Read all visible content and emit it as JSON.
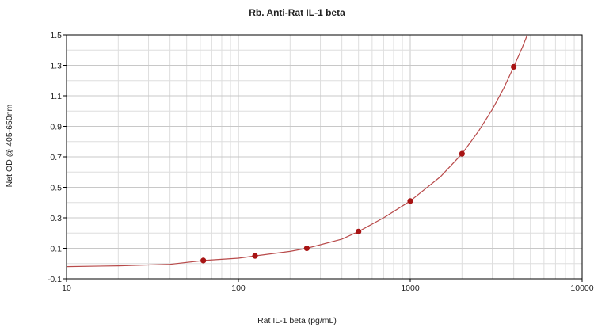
{
  "chart_data": {
    "type": "scatter",
    "title": "Rb. Anti-Rat IL-1 beta",
    "xlabel": "Rat IL-1 beta (pg/mL)",
    "ylabel": "Net OD @ 405-650nm",
    "xscale": "log",
    "xlim": [
      10,
      10000
    ],
    "ylim": [
      -0.1,
      1.5
    ],
    "x_ticks": [
      {
        "value": 10,
        "label": "10"
      },
      {
        "value": 100,
        "label": "100"
      },
      {
        "value": 1000,
        "label": "1000"
      },
      {
        "value": 10000,
        "label": "10000"
      }
    ],
    "y_ticks": [
      {
        "value": -0.1,
        "label": "-0.1"
      },
      {
        "value": 0.1,
        "label": "0.1"
      },
      {
        "value": 0.3,
        "label": "0.3"
      },
      {
        "value": 0.5,
        "label": "0.5"
      },
      {
        "value": 0.7,
        "label": "0.7"
      },
      {
        "value": 0.9,
        "label": "0.9"
      },
      {
        "value": 1.1,
        "label": "1.1"
      },
      {
        "value": 1.3,
        "label": "1.3"
      },
      {
        "value": 1.5,
        "label": "1.5"
      }
    ],
    "grid": true,
    "points": [
      {
        "x": 62.5,
        "y": 0.02
      },
      {
        "x": 125,
        "y": 0.05
      },
      {
        "x": 250,
        "y": 0.1
      },
      {
        "x": 500,
        "y": 0.21
      },
      {
        "x": 1000,
        "y": 0.41
      },
      {
        "x": 2000,
        "y": 0.72
      },
      {
        "x": 4000,
        "y": 1.29
      }
    ],
    "fit_curve": {
      "type": "line",
      "x": [
        10,
        20,
        40,
        62.5,
        100,
        125,
        200,
        250,
        400,
        500,
        700,
        1000,
        1500,
        2000,
        2500,
        3000,
        3500,
        4000,
        4500,
        4800
      ],
      "y": [
        -0.02,
        -0.015,
        -0.005,
        0.02,
        0.035,
        0.05,
        0.08,
        0.1,
        0.16,
        0.21,
        0.3,
        0.41,
        0.57,
        0.72,
        0.87,
        1.01,
        1.15,
        1.29,
        1.42,
        1.51
      ]
    },
    "colors": {
      "points": "#a81414",
      "curve": "#b84a4a",
      "grid_major": "#c8c8c8",
      "grid_minor": "#dedede",
      "axis": "#000000"
    }
  }
}
